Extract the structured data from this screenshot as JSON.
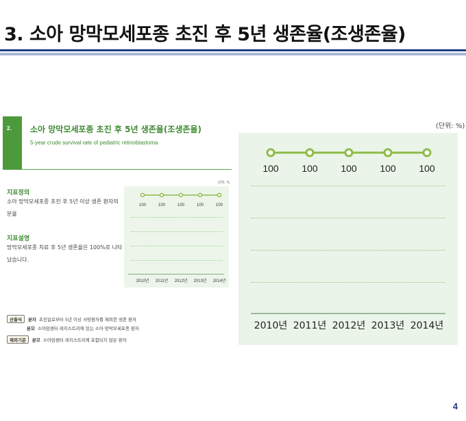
{
  "slide": {
    "title": "3. 소아 망막모세포종 초진 후 5년 생존율(조생존율)",
    "page_number": "4"
  },
  "report": {
    "section_number": "2.",
    "title_ko": "소아 망막모세포종 초진 후 5년 생존율(조생존율)",
    "title_en": "5-year crude survival rate of pediatric retinoblastoma",
    "definition_heading": "지표정의",
    "definition_text": "소아 망막모세포종 초진 후 5년 이상 생존 환자의 분율",
    "explanation_heading": "지표설명",
    "explanation_text": "망막모세포종 치료 후 5년 생존율은 100%로 나타났습니다.",
    "mini_unit": "단위: %",
    "footnotes": {
      "formula_tag": "산출식",
      "numerator_key": "분자",
      "numerator_text": "초진일로부터 5년 이상 사망환자를 제외한 생존 환자",
      "denominator_key": "분모",
      "denominator_text": "소아암센터 레지스트리에 있는 소아 망막모세포종 환자",
      "exclusion_tag": "제외기준",
      "exclusion_key": "분모",
      "exclusion_text": "소아암센터 레지스트리에 포함되지 않은 환자"
    }
  },
  "chart": {
    "unit": "(단위: %)",
    "colors": {
      "line": "#8cbc47",
      "marker_fill": "#ffffff",
      "panel": "#ebf4e8"
    }
  },
  "chart_data": {
    "type": "line",
    "categories": [
      "2010년",
      "2011년",
      "2012년",
      "2013년",
      "2014년"
    ],
    "series": [
      {
        "values": [
          100,
          100,
          100,
          100,
          100
        ]
      }
    ],
    "data_labels": [
      "100",
      "100",
      "100",
      "100",
      "100"
    ],
    "mini_categories": [
      "2010년",
      "2011년",
      "2012년",
      "2013년",
      "2014년"
    ],
    "ylim": [
      0,
      100
    ],
    "grid": true,
    "unit": "단위: %"
  }
}
